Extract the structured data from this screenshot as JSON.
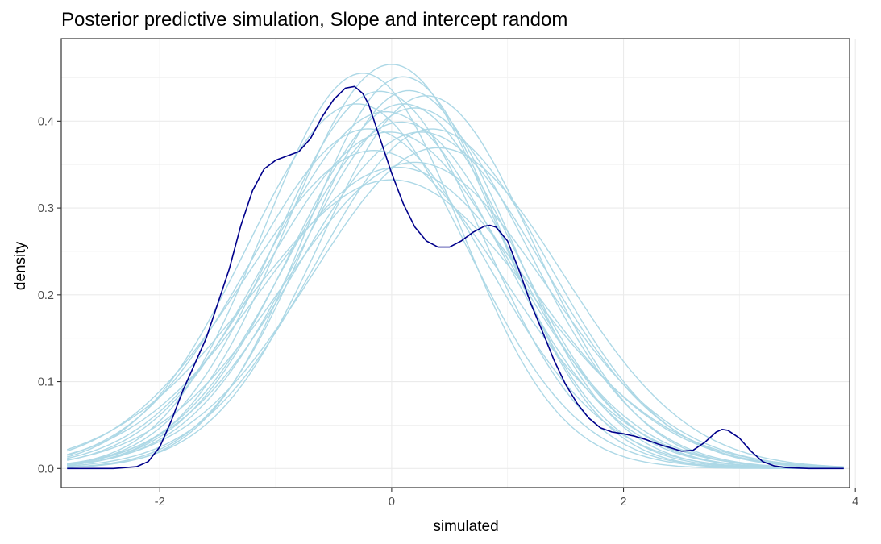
{
  "chart_data": {
    "type": "line",
    "title": "Posterior predictive simulation, Slope and intercept random",
    "xlabel": "simulated",
    "ylabel": "density",
    "xlim": [
      -2.85,
      3.95
    ],
    "ylim": [
      -0.022,
      0.495
    ],
    "x_ticks": [
      -2,
      0,
      2,
      4
    ],
    "x_tick_labels": [
      "-2",
      "0",
      "2",
      "4"
    ],
    "y_ticks": [
      0.0,
      0.1,
      0.2,
      0.3,
      0.4
    ],
    "y_tick_labels": [
      "0.0",
      "0.1",
      "0.2",
      "0.3",
      "0.4"
    ],
    "grid": true,
    "legend": "none",
    "observed_color": "#00008b",
    "simulated_color": "#add8e6",
    "x_range": [
      -2.8,
      3.9
    ],
    "observed": {
      "x": [
        -2.8,
        -2.6,
        -2.4,
        -2.2,
        -2.1,
        -2.0,
        -1.9,
        -1.8,
        -1.7,
        -1.6,
        -1.5,
        -1.4,
        -1.3,
        -1.2,
        -1.1,
        -1.0,
        -0.9,
        -0.8,
        -0.7,
        -0.6,
        -0.5,
        -0.4,
        -0.32,
        -0.25,
        -0.2,
        -0.15,
        -0.1,
        0.0,
        0.1,
        0.2,
        0.3,
        0.4,
        0.5,
        0.6,
        0.7,
        0.8,
        0.85,
        0.9,
        1.0,
        1.1,
        1.2,
        1.3,
        1.4,
        1.5,
        1.6,
        1.7,
        1.8,
        1.9,
        2.0,
        2.1,
        2.2,
        2.3,
        2.4,
        2.5,
        2.6,
        2.7,
        2.8,
        2.85,
        2.9,
        3.0,
        3.1,
        3.2,
        3.3,
        3.4,
        3.6,
        3.9
      ],
      "y": [
        0.0,
        0.0,
        0.0,
        0.002,
        0.008,
        0.025,
        0.055,
        0.09,
        0.12,
        0.15,
        0.19,
        0.23,
        0.28,
        0.32,
        0.345,
        0.355,
        0.36,
        0.365,
        0.38,
        0.405,
        0.425,
        0.438,
        0.44,
        0.432,
        0.42,
        0.4,
        0.38,
        0.34,
        0.305,
        0.278,
        0.262,
        0.255,
        0.255,
        0.262,
        0.272,
        0.279,
        0.28,
        0.278,
        0.262,
        0.228,
        0.19,
        0.158,
        0.125,
        0.097,
        0.075,
        0.058,
        0.047,
        0.042,
        0.04,
        0.037,
        0.033,
        0.028,
        0.024,
        0.02,
        0.021,
        0.03,
        0.042,
        0.045,
        0.044,
        0.035,
        0.02,
        0.008,
        0.003,
        0.001,
        0.0,
        0.0
      ]
    },
    "series": [
      {
        "mu": 0.1,
        "sigma": 0.95,
        "scale": 1.0
      },
      {
        "mu": -0.1,
        "sigma": 0.9,
        "scale": 0.98
      },
      {
        "mu": 0.25,
        "sigma": 1.05,
        "scale": 1.02
      },
      {
        "mu": -0.25,
        "sigma": 0.85,
        "scale": 0.97
      },
      {
        "mu": 0.05,
        "sigma": 1.15,
        "scale": 1.0
      },
      {
        "mu": 0.3,
        "sigma": 0.92,
        "scale": 0.99
      },
      {
        "mu": -0.05,
        "sigma": 1.0,
        "scale": 1.03
      },
      {
        "mu": 0.15,
        "sigma": 0.88,
        "scale": 0.96
      },
      {
        "mu": -0.15,
        "sigma": 1.1,
        "scale": 1.01
      },
      {
        "mu": 0.2,
        "sigma": 0.98,
        "scale": 1.02
      },
      {
        "mu": 0.0,
        "sigma": 1.2,
        "scale": 1.0
      },
      {
        "mu": 0.35,
        "sigma": 1.0,
        "scale": 0.98
      },
      {
        "mu": -0.3,
        "sigma": 0.95,
        "scale": 1.0
      },
      {
        "mu": 0.1,
        "sigma": 0.84,
        "scale": 0.95
      },
      {
        "mu": 0.0,
        "sigma": 0.9,
        "scale": 1.05
      },
      {
        "mu": 0.2,
        "sigma": 1.12,
        "scale": 0.99
      },
      {
        "mu": -0.2,
        "sigma": 1.02,
        "scale": 1.0
      },
      {
        "mu": 0.08,
        "sigma": 0.97,
        "scale": 0.97
      },
      {
        "mu": 0.4,
        "sigma": 1.08,
        "scale": 1.0
      },
      {
        "mu": -0.02,
        "sigma": 1.05,
        "scale": 1.02
      }
    ]
  }
}
